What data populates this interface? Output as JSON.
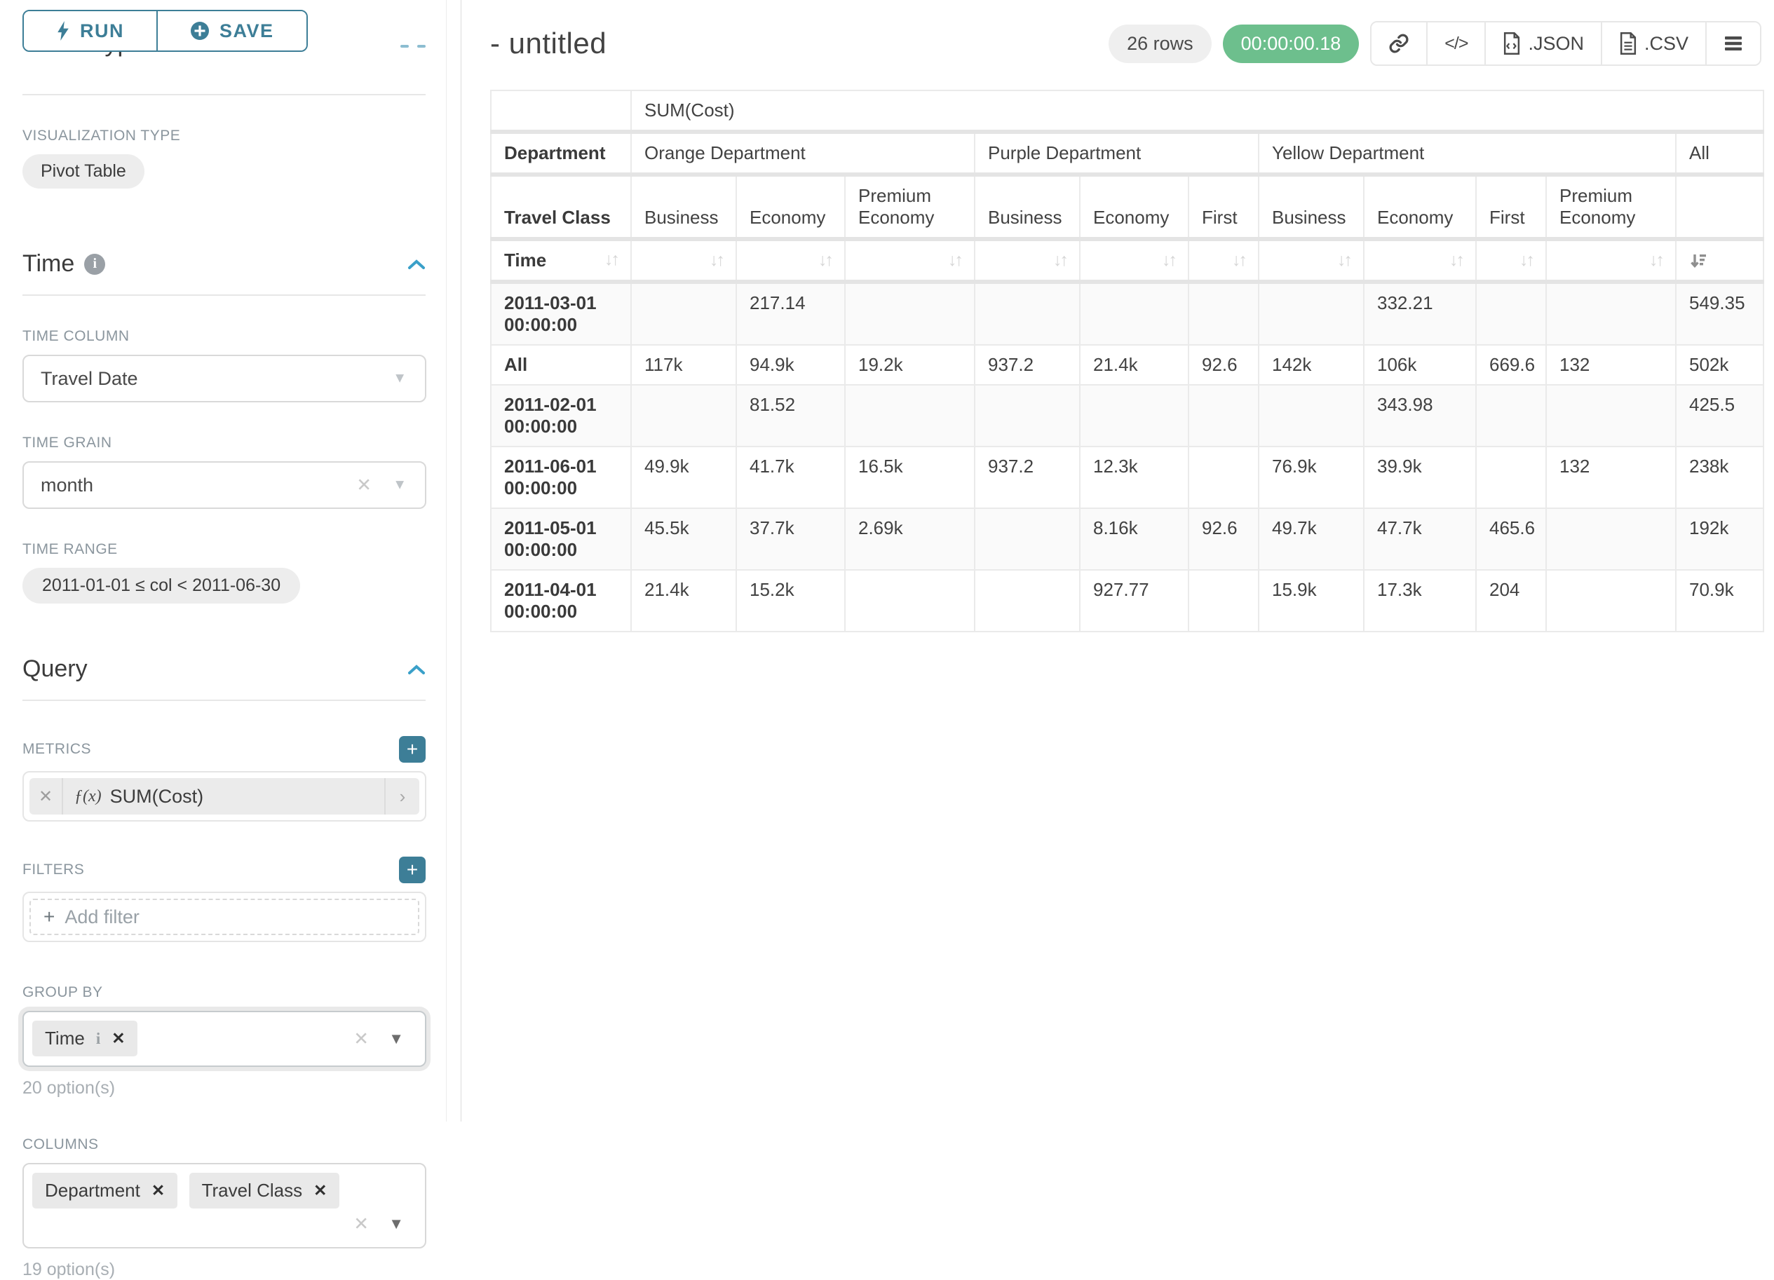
{
  "sidebar": {
    "run_label": "RUN",
    "save_label": "SAVE",
    "chart_type_heading": "Chart Type",
    "viz_label": "VISUALIZATION TYPE",
    "viz_value": "Pivot Table",
    "time": {
      "title": "Time",
      "column_label": "TIME COLUMN",
      "column_value": "Travel Date",
      "grain_label": "TIME GRAIN",
      "grain_value": "month",
      "range_label": "TIME RANGE",
      "range_value": "2011-01-01 ≤ col < 2011-06-30"
    },
    "query": {
      "title": "Query",
      "metrics_label": "METRICS",
      "metric_fx": "ƒ(x)",
      "metric_value": "SUM(Cost)",
      "filters_label": "FILTERS",
      "add_filter_label": "Add filter",
      "group_by_label": "GROUP BY",
      "group_by_chip": "Time",
      "group_by_options": "20 option(s)",
      "columns_label": "COLUMNS",
      "columns_chip_1": "Department",
      "columns_chip_2": "Travel Class",
      "columns_options": "19 option(s)"
    }
  },
  "header": {
    "title": "- untitled",
    "row_count": "26 rows",
    "timer": "00:00:00.18",
    "json_label": ".JSON",
    "csv_label": ".CSV"
  },
  "colors": {
    "accent_teal": "#3d7e97",
    "chevron_blue": "#3aa0c9",
    "timer_green": "#6dbf8d",
    "label_gray": "#8b969e"
  },
  "pivot": {
    "metric_header": "SUM(Cost)",
    "dept_row_label": "Department",
    "groups": [
      {
        "label": "Orange Department",
        "span": 3
      },
      {
        "label": "Purple Department",
        "span": 3
      },
      {
        "label": "Yellow Department",
        "span": 4
      },
      {
        "label": "All",
        "span": 1
      }
    ],
    "class_row_label": "Travel Class",
    "sub_headers": [
      "Business",
      "Economy",
      "Premium Economy",
      "Business",
      "Economy",
      "First",
      "Business",
      "Economy",
      "First",
      "Premium Economy",
      ""
    ],
    "time_row_label": "Time",
    "rows": [
      {
        "label": "2011-03-01 00:00:00",
        "values": [
          "",
          "217.14",
          "",
          "",
          "",
          "",
          "",
          "332.21",
          "",
          "",
          "549.35"
        ]
      },
      {
        "label": "All",
        "values": [
          "117k",
          "94.9k",
          "19.2k",
          "937.2",
          "21.4k",
          "92.6",
          "142k",
          "106k",
          "669.6",
          "132",
          "502k"
        ]
      },
      {
        "label": "2011-02-01 00:00:00",
        "values": [
          "",
          "81.52",
          "",
          "",
          "",
          "",
          "",
          "343.98",
          "",
          "",
          "425.5"
        ]
      },
      {
        "label": "2011-06-01 00:00:00",
        "values": [
          "49.9k",
          "41.7k",
          "16.5k",
          "937.2",
          "12.3k",
          "",
          "76.9k",
          "39.9k",
          "",
          "132",
          "238k"
        ]
      },
      {
        "label": "2011-05-01 00:00:00",
        "values": [
          "45.5k",
          "37.7k",
          "2.69k",
          "",
          "8.16k",
          "92.6",
          "49.7k",
          "47.7k",
          "465.6",
          "",
          "192k"
        ]
      },
      {
        "label": "2011-04-01 00:00:00",
        "values": [
          "21.4k",
          "15.2k",
          "",
          "",
          "927.77",
          "",
          "15.9k",
          "17.3k",
          "204",
          "",
          "70.9k"
        ]
      }
    ]
  }
}
